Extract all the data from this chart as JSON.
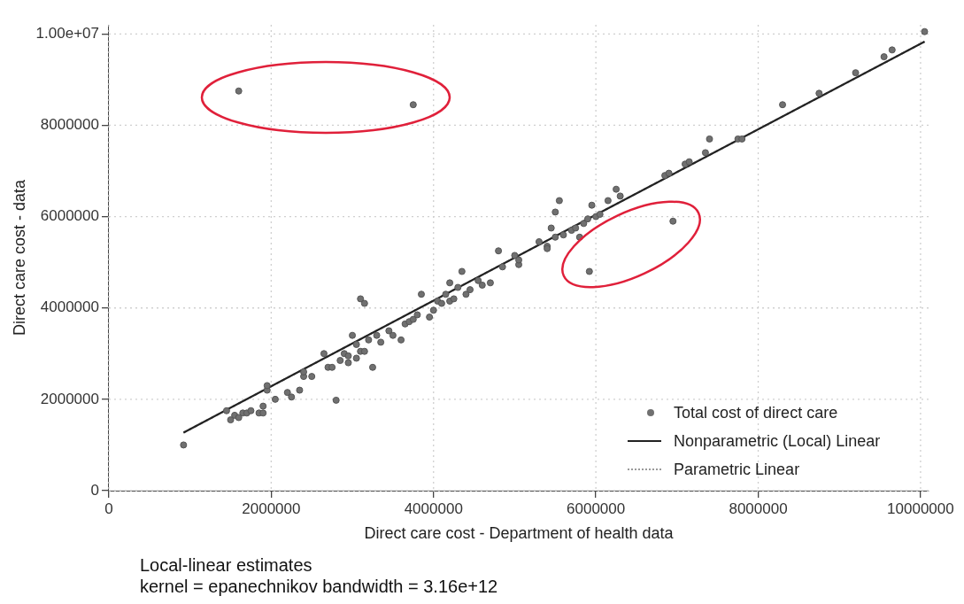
{
  "chart_data": {
    "type": "scatter",
    "xlabel": "Direct care cost - Department of health data",
    "ylabel": "Direct care cost - data",
    "xlim": [
      0,
      10100000
    ],
    "ylim": [
      0,
      10200000
    ],
    "xticks": [
      0,
      2000000,
      4000000,
      6000000,
      8000000,
      10000000
    ],
    "yticks": [
      0,
      2000000,
      4000000,
      6000000,
      8000000,
      {
        "value": 10000000,
        "label": "1.00e+07"
      }
    ],
    "grid": true,
    "legend": "bottom right",
    "annotations": [
      "Local-linear estimates",
      "kernel = epanechnikov bandwidth = 3.16e+12"
    ],
    "series": [
      {
        "name": "Total cost of direct care",
        "type": "scatter",
        "color": "#707070",
        "marker": "circle",
        "x": [
          920000,
          1450000,
          1500000,
          1550000,
          1600000,
          1650000,
          1700000,
          1750000,
          1850000,
          1900000,
          1900000,
          1950000,
          1950000,
          2050000,
          2200000,
          2250000,
          2350000,
          2400000,
          2400000,
          2500000,
          2650000,
          2700000,
          2750000,
          2800000,
          2850000,
          2900000,
          2950000,
          2950000,
          3000000,
          3050000,
          3100000,
          3050000,
          3150000,
          3200000,
          3100000,
          3150000,
          3250000,
          3300000,
          3350000,
          3450000,
          3500000,
          3600000,
          3650000,
          3700000,
          3750000,
          3800000,
          3850000,
          3950000,
          4000000,
          4050000,
          4100000,
          4150000,
          4200000,
          4200000,
          4250000,
          4300000,
          4350000,
          4400000,
          4450000,
          4550000,
          4600000,
          4700000,
          4800000,
          4850000,
          5000000,
          5050000,
          5050000,
          5300000,
          5400000,
          5400000,
          5450000,
          5500000,
          5500000,
          5550000,
          5600000,
          5700000,
          5750000,
          5800000,
          5850000,
          5900000,
          5950000,
          6000000,
          6050000,
          6150000,
          6250000,
          6300000,
          5920000,
          6950000,
          6850000,
          6900000,
          7100000,
          7150000,
          7350000,
          7400000,
          7750000,
          7800000,
          8300000,
          8750000,
          9200000,
          9550000,
          9650000,
          10050000,
          1600000,
          3750000
        ],
        "values": [
          1000000,
          1750000,
          1550000,
          1650000,
          1600000,
          1700000,
          1700000,
          1750000,
          1700000,
          1700000,
          1850000,
          2200000,
          2300000,
          2000000,
          2150000,
          2050000,
          2200000,
          2500000,
          2600000,
          2500000,
          3000000,
          2700000,
          2700000,
          1980000,
          2850000,
          3000000,
          2800000,
          2950000,
          3400000,
          2900000,
          3050000,
          3200000,
          3050000,
          3300000,
          4200000,
          4100000,
          2700000,
          3400000,
          3250000,
          3500000,
          3400000,
          3300000,
          3650000,
          3700000,
          3750000,
          3850000,
          4300000,
          3800000,
          3950000,
          4150000,
          4100000,
          4300000,
          4550000,
          4150000,
          4200000,
          4450000,
          4800000,
          4300000,
          4400000,
          4600000,
          4500000,
          4550000,
          5250000,
          4900000,
          5150000,
          4950000,
          5050000,
          5450000,
          5350000,
          5300000,
          5750000,
          6100000,
          5550000,
          6350000,
          5600000,
          5700000,
          5750000,
          5550000,
          5850000,
          5950000,
          6250000,
          6000000,
          6050000,
          6350000,
          6600000,
          6450000,
          4800000,
          5900000,
          6900000,
          6950000,
          7150000,
          7200000,
          7400000,
          7700000,
          7700000,
          7700000,
          8450000,
          8700000,
          9150000,
          9500000,
          9650000,
          10050000,
          8750000,
          8450000
        ]
      },
      {
        "name": "Nonparametric (Local) Linear",
        "type": "line",
        "color": "#222222",
        "line_style": "solid",
        "x": [
          920000,
          6000000,
          10050000
        ],
        "values": [
          1270000,
          6040000,
          9830000
        ]
      },
      {
        "name": "Parametric Linear",
        "type": "line",
        "color": "#9a9a9a",
        "line_style": "dotted",
        "x": [
          920000,
          6000000,
          10050000
        ],
        "values": [
          1270000,
          6040000,
          9830000
        ]
      }
    ]
  }
}
